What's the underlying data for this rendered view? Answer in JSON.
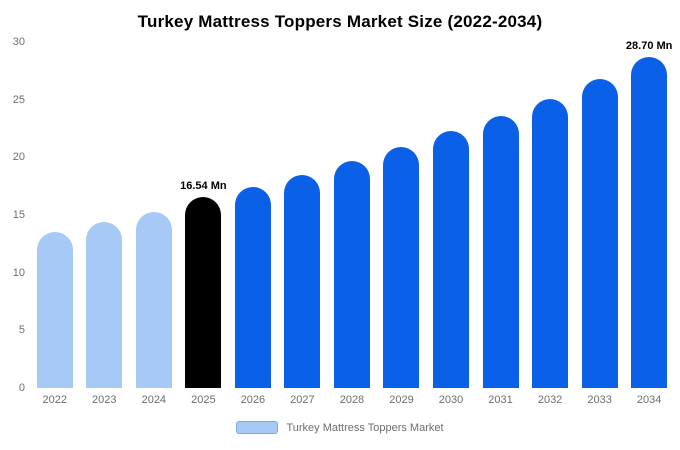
{
  "chart_data": {
    "type": "bar",
    "title": "Turkey Mattress Toppers Market Size (2022-2034)",
    "categories": [
      "2022",
      "2023",
      "2024",
      "2025",
      "2026",
      "2027",
      "2028",
      "2029",
      "2030",
      "2031",
      "2032",
      "2033",
      "2034"
    ],
    "values": [
      13.5,
      14.4,
      15.3,
      16.54,
      17.4,
      18.5,
      19.7,
      20.9,
      22.3,
      23.6,
      25.1,
      26.8,
      28.7
    ],
    "bar_colors": [
      "#a6c9f6",
      "#a6c9f6",
      "#a6c9f6",
      "#000000",
      "#0b60e8",
      "#0b60e8",
      "#0b60e8",
      "#0b60e8",
      "#0b60e8",
      "#0b60e8",
      "#0b60e8",
      "#0b60e8",
      "#0b60e8"
    ],
    "annotations": [
      {
        "index": 3,
        "text": "16.54 Mn"
      },
      {
        "index": 12,
        "text": "28.70 Mn"
      }
    ],
    "xlabel": "",
    "ylabel": "",
    "ylim": [
      0,
      30
    ],
    "yticks": [
      0,
      5,
      10,
      15,
      20,
      25,
      30
    ],
    "grid": false,
    "legend": {
      "position": "bottom",
      "items": [
        {
          "label": "Turkey Mattress Toppers Market",
          "color": "#a6c9f6",
          "border": "#7aa9e8"
        }
      ]
    },
    "colors": {
      "historical": "#a6c9f6",
      "highlight": "#000000",
      "forecast": "#0b60e8",
      "axis_text": "#6e6e6e"
    }
  }
}
